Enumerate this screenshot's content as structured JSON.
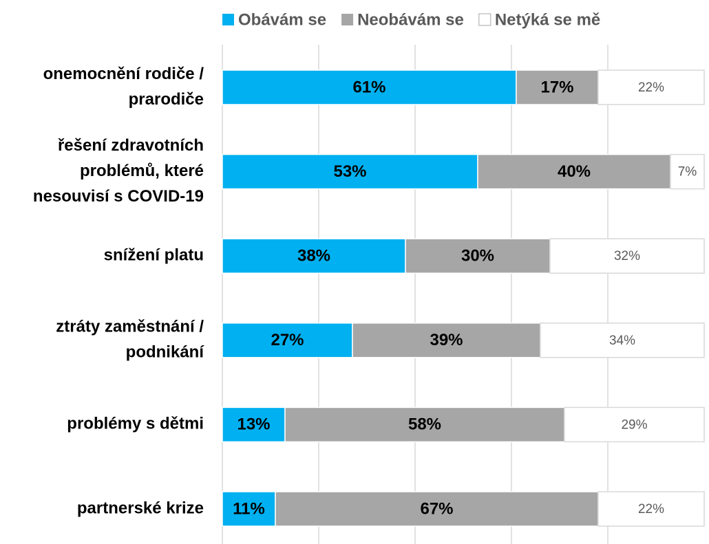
{
  "chart_data": {
    "type": "stacked-bar-horizontal",
    "categories": [
      [
        "onemocnění rodiče /",
        "prarodiče"
      ],
      [
        "řešení zdravotních",
        "problémů, které",
        "nesouvisí s COVID-19"
      ],
      [
        "snížení platu"
      ],
      [
        "ztráty zaměstnání /",
        "podnikání"
      ],
      [
        "problémy s dětmi"
      ],
      [
        "partnerské krize"
      ]
    ],
    "series": [
      {
        "name": "Obávám se",
        "color": "#00b0f0",
        "values": [
          61,
          53,
          38,
          27,
          13,
          11
        ],
        "value_labels": [
          "61%",
          "53%",
          "38%",
          "27%",
          "13%",
          "11%"
        ]
      },
      {
        "name": "Neobávám se",
        "color": "#a6a6a6",
        "values": [
          17,
          40,
          30,
          39,
          58,
          67
        ],
        "value_labels": [
          "17%",
          "40%",
          "30%",
          "39%",
          "58%",
          "67%"
        ]
      },
      {
        "name": "Netýká se mě",
        "color": "#ffffff",
        "values": [
          22,
          7,
          32,
          34,
          29,
          22
        ],
        "value_labels": [
          "22%",
          "7%",
          "32%",
          "34%",
          "29%",
          "22%"
        ]
      }
    ],
    "xlim": [
      0,
      100
    ],
    "xticks": [
      0,
      20,
      40,
      60,
      80
    ],
    "grid": true,
    "legend": "top"
  }
}
